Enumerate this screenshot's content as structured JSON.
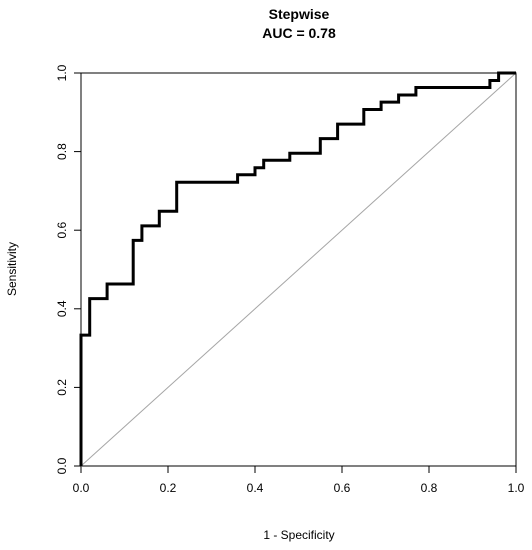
{
  "chart_data": {
    "type": "line",
    "title": "Stepwise",
    "subtitle": "AUC = 0.78",
    "xlabel": "1 - Specificity",
    "ylabel": "Sensitivity",
    "xlim": [
      0,
      1
    ],
    "ylim": [
      0,
      1
    ],
    "xticks": [
      "0.0",
      "0.2",
      "0.4",
      "0.6",
      "0.8",
      "1.0"
    ],
    "yticks": [
      "0.0",
      "0.2",
      "0.4",
      "0.6",
      "0.8",
      "1.0"
    ],
    "grid": false,
    "legend": "none",
    "series": [
      {
        "style": "step",
        "color": "#000000",
        "x": [
          0.0,
          0.0,
          0.02,
          0.02,
          0.06,
          0.06,
          0.12,
          0.12,
          0.14,
          0.14,
          0.18,
          0.18,
          0.22,
          0.22,
          0.36,
          0.36,
          0.4,
          0.4,
          0.42,
          0.42,
          0.48,
          0.48,
          0.55,
          0.55,
          0.59,
          0.59,
          0.65,
          0.65,
          0.69,
          0.69,
          0.73,
          0.73,
          0.77,
          0.77,
          0.94,
          0.94,
          0.96,
          0.96,
          1.0
        ],
        "y": [
          0.0,
          0.333,
          0.333,
          0.426,
          0.426,
          0.463,
          0.463,
          0.574,
          0.574,
          0.611,
          0.611,
          0.648,
          0.648,
          0.722,
          0.722,
          0.741,
          0.741,
          0.759,
          0.759,
          0.778,
          0.778,
          0.796,
          0.796,
          0.833,
          0.833,
          0.87,
          0.87,
          0.907,
          0.907,
          0.926,
          0.926,
          0.944,
          0.944,
          0.963,
          0.963,
          0.981,
          0.981,
          1.0,
          1.0
        ]
      },
      {
        "style": "diagonal-reference",
        "color": "#a6a6a6",
        "x": [
          0,
          1
        ],
        "y": [
          0,
          1
        ]
      }
    ]
  }
}
